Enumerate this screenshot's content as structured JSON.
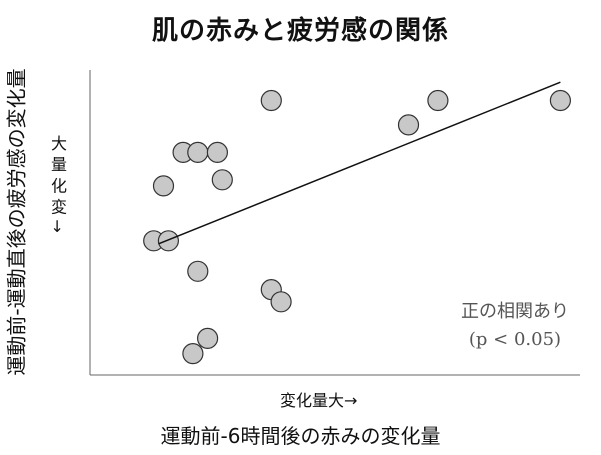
{
  "chart_data": {
    "type": "scatter",
    "title": "肌の赤みと疲労感の関係",
    "xlabel": "運動前-6時間後の赤みの変化量",
    "ylabel": "運動前-運動直後の疲労感の変化量",
    "x_hint": "変化量大→",
    "y_hint": "大 量 化 変 →",
    "annotation_line1": "正の相関あり",
    "annotation_line2": "(p < 0.05)",
    "xlim": [
      0,
      100
    ],
    "ylim": [
      0,
      100
    ],
    "points": [
      {
        "x": 13,
        "y": 44
      },
      {
        "x": 16,
        "y": 44
      },
      {
        "x": 15,
        "y": 62
      },
      {
        "x": 19,
        "y": 73
      },
      {
        "x": 22,
        "y": 73
      },
      {
        "x": 26,
        "y": 73
      },
      {
        "x": 27,
        "y": 64
      },
      {
        "x": 22,
        "y": 34
      },
      {
        "x": 24,
        "y": 12
      },
      {
        "x": 21,
        "y": 7
      },
      {
        "x": 37,
        "y": 90
      },
      {
        "x": 37,
        "y": 28
      },
      {
        "x": 39,
        "y": 24
      },
      {
        "x": 65,
        "y": 82
      },
      {
        "x": 71,
        "y": 90
      },
      {
        "x": 96,
        "y": 90
      }
    ],
    "trendline": {
      "x1": 14,
      "y1": 43,
      "x2": 96,
      "y2": 96
    },
    "point_color": "#c8c8c8",
    "point_stroke": "#333333",
    "grid": false,
    "legend": "none"
  }
}
